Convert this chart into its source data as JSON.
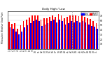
{
  "title": "Milwaukee Weather Dew Point",
  "subtitle": "Daily High / Low  (°F/°C)",
  "legend_high": "High",
  "legend_low": "Low",
  "high_color": "#ff0000",
  "low_color": "#0000ff",
  "background_color": "#ffffff",
  "plot_bg": "#ffffff",
  "categories": [
    "1",
    "2",
    "3",
    "4",
    "5",
    "6",
    "7",
    "8",
    "9",
    "10",
    "11",
    "12",
    "13",
    "14",
    "15",
    "16",
    "17",
    "18",
    "19",
    "20",
    "21",
    "22",
    "23",
    "24",
    "25",
    "26",
    "27",
    "28",
    "29",
    "30",
    "31"
  ],
  "high_values": [
    57,
    53,
    55,
    42,
    50,
    58,
    62,
    66,
    70,
    70,
    70,
    62,
    64,
    65,
    68,
    70,
    68,
    74,
    71,
    65,
    67,
    70,
    70,
    71,
    69,
    70,
    68,
    65,
    63,
    59,
    54
  ],
  "low_values": [
    46,
    43,
    37,
    30,
    37,
    46,
    50,
    54,
    59,
    61,
    59,
    49,
    51,
    54,
    59,
    61,
    56,
    61,
    59,
    51,
    54,
    59,
    56,
    59,
    56,
    59,
    56,
    51,
    49,
    47,
    42
  ],
  "ylim": [
    0,
    80
  ],
  "yticks": [
    10,
    20,
    30,
    40,
    50,
    60,
    70
  ],
  "figsize": [
    1.6,
    0.87
  ],
  "dpi": 100,
  "dashed_line_x": 21.5
}
